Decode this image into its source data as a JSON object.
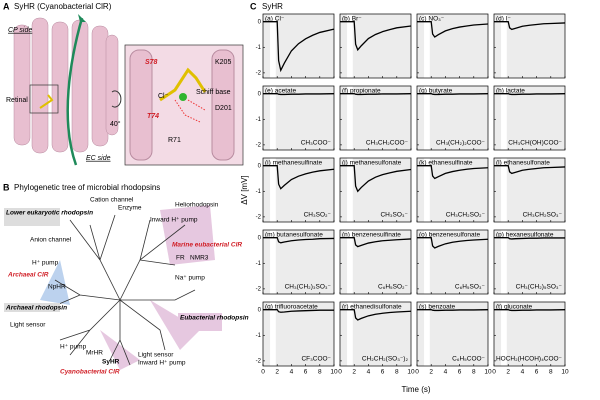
{
  "panel_a": {
    "letter": "A",
    "title": "SyHR (Cyanobacterial ClR)",
    "cp_side": "CP side",
    "ec_side": "EC side",
    "retinal": "Retinal",
    "angle": "40°",
    "residues": {
      "s78": "S78",
      "k205": "K205",
      "cl": "Cl⁻",
      "schiff": "Schiff base",
      "d201": "D201",
      "t74": "T74",
      "r71": "R71"
    }
  },
  "panel_b": {
    "letter": "B",
    "title": "Phylogenetic tree of microbial rhodopsins",
    "labels": [
      "Lower eukaryotic rhodopsin",
      "Cation channel",
      "Enzyme",
      "Inward H⁺ pump",
      "Heliorhodopsin",
      "Anion channel",
      "Marine eubacterial ClR",
      "FR",
      "NMR3",
      "H⁺ pump",
      "Archaeal ClR",
      "NpHR",
      "Na⁺ pump",
      "Archaeal rhodopsin",
      "Light sensor",
      "H⁺ pump",
      "Eubacterial rhodopsin",
      "MrHR",
      "SyHR",
      "Light sensor",
      "Inward H⁺ pump",
      "Cyanobacterial ClR"
    ]
  },
  "panel_c": {
    "letter": "C",
    "title": "SyHR",
    "ylabel": "ΔV [mV]",
    "xlabel": "Time (s)",
    "xlim": [
      0,
      10
    ],
    "xticks": [
      0,
      2,
      4,
      6,
      8,
      10
    ],
    "ylim": [
      -2.2,
      0.3
    ],
    "yticks": [
      0,
      -1,
      -2
    ],
    "x": [
      0,
      1,
      2,
      2.2,
      2.5,
      3,
      4,
      5,
      6,
      7,
      8,
      10
    ],
    "plots": [
      {
        "title": "(a) Cl⁻",
        "values": [
          0,
          0,
          0,
          -1.52,
          -1.9,
          -1.62,
          -1.14,
          -0.86,
          -0.67,
          -0.53,
          -0.42,
          -0.29
        ]
      },
      {
        "title": "(b) Br⁻",
        "values": [
          0,
          0,
          0,
          -0.88,
          -1.1,
          -0.94,
          -0.66,
          -0.5,
          -0.39,
          -0.31,
          -0.24,
          -0.17
        ]
      },
      {
        "title": "(c) NO₃⁻",
        "values": [
          0,
          0,
          0,
          -0.48,
          -0.6,
          -0.51,
          -0.36,
          -0.27,
          -0.21,
          -0.17,
          -0.13,
          -0.09
        ]
      },
      {
        "title": "(d) I⁻",
        "values": [
          0,
          0,
          0,
          -0.24,
          -0.3,
          -0.26,
          -0.18,
          -0.14,
          -0.11,
          -0.08,
          -0.07,
          -0.05
        ]
      },
      {
        "title": "(e) acetate",
        "formula": "CH₃COO⁻",
        "values": [
          0,
          0,
          0,
          -0.02,
          -0.03,
          -0.03,
          -0.02,
          -0.02,
          -0.01,
          -0.01,
          -0.01,
          0
        ]
      },
      {
        "title": "(f) propionate",
        "formula": "CH₃CH₂COO⁻",
        "values": [
          0,
          0,
          0,
          -0.02,
          -0.03,
          -0.03,
          -0.02,
          -0.02,
          -0.01,
          -0.01,
          -0.01,
          0
        ]
      },
      {
        "title": "(g) butyrate",
        "formula": "CH₃(CH₂)₂COO⁻",
        "values": [
          0,
          0,
          0,
          -0.02,
          -0.03,
          -0.03,
          -0.02,
          -0.02,
          -0.01,
          -0.01,
          -0.01,
          0
        ]
      },
      {
        "title": "(h) lactate",
        "formula": "CH₃CH(OH)COO⁻",
        "values": [
          0,
          0,
          0,
          -0.02,
          -0.03,
          -0.03,
          -0.02,
          -0.02,
          -0.01,
          -0.01,
          -0.01,
          0
        ]
      },
      {
        "title": "(i) methanesulfinate",
        "formula": "CH₃SO₂⁻",
        "values": [
          0,
          0,
          0,
          -0.72,
          -0.9,
          -0.77,
          -0.54,
          -0.41,
          -0.32,
          -0.25,
          -0.2,
          -0.14
        ]
      },
      {
        "title": "(j) methanesulfonate",
        "formula": "CH₃SO₃⁻",
        "values": [
          0,
          0,
          0,
          -0.8,
          -1.0,
          -0.85,
          -0.6,
          -0.45,
          -0.35,
          -0.28,
          -0.22,
          -0.15
        ]
      },
      {
        "title": "(k) ethanesulfinate",
        "formula": "CH₃CH₂SO₂⁻",
        "values": [
          0,
          0,
          0,
          -0.4,
          -0.5,
          -0.43,
          -0.3,
          -0.23,
          -0.18,
          -0.14,
          -0.11,
          -0.08
        ]
      },
      {
        "title": "(l) ethanesulfonate",
        "formula": "CH₃CH₂SO₃⁻",
        "values": [
          0,
          0,
          0,
          -0.24,
          -0.3,
          -0.26,
          -0.18,
          -0.14,
          -0.11,
          -0.08,
          -0.07,
          -0.05
        ]
      },
      {
        "title": "(m) butanesulfonate",
        "formula": "CH₃(CH₂)₃SO₃⁻",
        "values": [
          0,
          0,
          0,
          -0.16,
          -0.2,
          -0.17,
          -0.12,
          -0.09,
          -0.07,
          -0.06,
          -0.04,
          -0.03
        ]
      },
      {
        "title": "(n) benzenesulfinate",
        "formula": "C₆H₅SO₂⁻",
        "values": [
          0,
          0,
          0,
          -0.28,
          -0.35,
          -0.3,
          -0.21,
          -0.16,
          -0.12,
          -0.1,
          -0.08,
          -0.05
        ]
      },
      {
        "title": "(o) benzenesulfonate",
        "formula": "C₆H₅SO₃⁻",
        "values": [
          0,
          0,
          0,
          -0.32,
          -0.4,
          -0.34,
          -0.24,
          -0.18,
          -0.14,
          -0.11,
          -0.09,
          -0.06
        ]
      },
      {
        "title": "(p) hexanesulfonate",
        "formula": "CH₃(CH₂)₅SO₃⁻",
        "values": [
          0,
          0,
          0,
          -0.04,
          -0.05,
          -0.04,
          -0.03,
          -0.02,
          -0.02,
          -0.01,
          -0.01,
          -0.01
        ]
      },
      {
        "title": "(q) trifluoroacetate",
        "formula": "CF₃COO⁻",
        "values": [
          0,
          0,
          0,
          -0.08,
          -0.1,
          -0.09,
          -0.06,
          -0.05,
          -0.04,
          -0.03,
          -0.02,
          -0.02
        ]
      },
      {
        "title": "(r) ethanedisulfonate",
        "formula": "CH₂CH₂(SO₃⁻)₂",
        "values": [
          0,
          0,
          0,
          -0.32,
          -0.4,
          -0.34,
          -0.24,
          -0.18,
          -0.14,
          -0.11,
          -0.09,
          -0.06
        ]
      },
      {
        "title": "(s) benzoate",
        "formula": "C₆H₅COO⁻",
        "values": [
          0,
          0,
          0,
          -0.02,
          -0.03,
          -0.03,
          -0.02,
          -0.02,
          -0.01,
          -0.01,
          -0.01,
          0
        ]
      },
      {
        "title": "(t) gluconate",
        "formula": "HOCH₂(HCOH)₄COO⁻",
        "values": [
          0,
          0,
          0,
          -0.02,
          -0.03,
          -0.03,
          -0.02,
          -0.02,
          -0.01,
          -0.01,
          -0.01,
          0
        ]
      }
    ]
  }
}
